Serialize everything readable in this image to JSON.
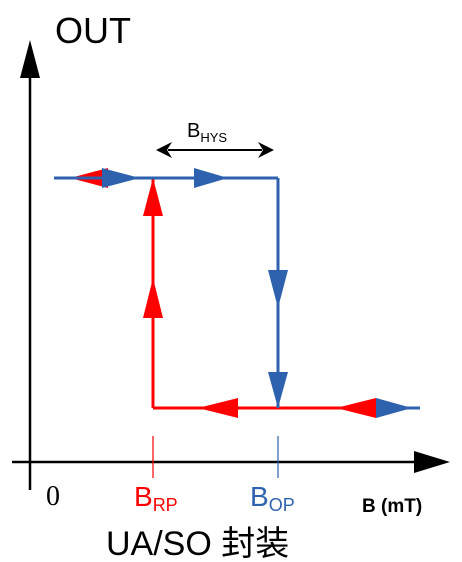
{
  "y_axis_label": "OUT",
  "x_axis_label": "B (mT)",
  "origin_label": "0",
  "hysteresis_label": {
    "base": "B",
    "sub": "HYS"
  },
  "release_point_label": {
    "base": "B",
    "sub": "RP"
  },
  "operate_point_label": {
    "base": "B",
    "sub": "OP"
  },
  "caption": "UA/SO 封装",
  "colors": {
    "release_curve": "#ff0000",
    "operate_curve": "#2f62ae",
    "axis": "#000000"
  }
}
